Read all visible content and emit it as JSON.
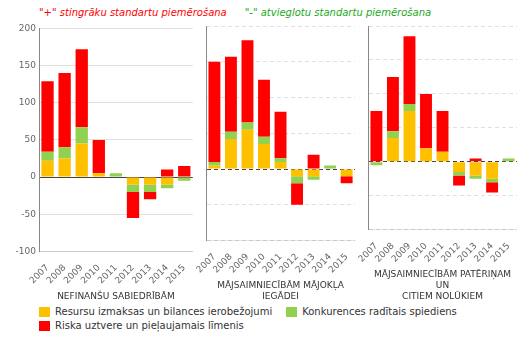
{
  "chart_data": [
    {
      "type": "bar",
      "stacked": true,
      "grid": true,
      "legend": "bottom",
      "xlabel": "NEFINANŠU SABIEDRĪBĀM",
      "categories": [
        2007,
        2008,
        2009,
        2010,
        2011,
        2012,
        2013,
        2014,
        2015
      ],
      "series": [
        {
          "name": "Resursu izmaksas un bilances ierobežojumi",
          "color": "#FFC000",
          "values": [
            22,
            25,
            45,
            5,
            0,
            -10,
            -10,
            -10,
            0
          ]
        },
        {
          "name": "Konkurences radītais spiediens",
          "color": "#92D050",
          "values": [
            12,
            15,
            22,
            0,
            5,
            -10,
            -10,
            -5,
            -5
          ]
        },
        {
          "name": "Riska uztvere un pieļaujamais līmenis",
          "color": "#FF0000",
          "values": [
            95,
            100,
            105,
            45,
            0,
            -35,
            -10,
            10,
            15
          ]
        }
      ],
      "ylim": [
        -100,
        200
      ],
      "yticks": [
        -100,
        -50,
        0,
        50,
        100,
        150,
        200
      ],
      "annotations": [
        {
          "text": "\"+\" stingrāku standartu piemērošana",
          "color": "red"
        },
        {
          "text": "\"-\" atvieglotu standartu piemērošana",
          "color": "#22AA22"
        }
      ]
    },
    {
      "type": "bar",
      "stacked": true,
      "grid": true,
      "tick_labels": "x",
      "xlabel": "MĀJSAIMNIECĪBĀM MĀJOKĻA IEGĀDEI",
      "categories": [
        2007,
        2008,
        2009,
        2010,
        2011,
        2012,
        2013,
        2014,
        2015
      ],
      "series": [
        {
          "name": "Resursu izmaksas un bilances ierobežojumi",
          "color": "#FFC000",
          "values": [
            5,
            42,
            55,
            35,
            10,
            -10,
            -10,
            0,
            -10
          ]
        },
        {
          "name": "Konkurences radītais spiediens",
          "color": "#92D050",
          "values": [
            5,
            10,
            10,
            10,
            5,
            -10,
            -5,
            5,
            0
          ]
        },
        {
          "name": "Riska uztvere un pieļaujamais līmenis",
          "color": "#FF0000",
          "values": [
            140,
            105,
            115,
            80,
            65,
            -30,
            20,
            0,
            -10
          ]
        }
      ],
      "ylim": [
        -100,
        200
      ],
      "yticks": [
        -100,
        -50,
        0,
        50,
        100,
        150,
        200
      ]
    },
    {
      "type": "bar",
      "stacked": true,
      "grid": true,
      "tick_labels": "x",
      "xlabel": "MĀJSAIMNIECĪBĀM PATĒRIŅAM UN\nCITIEM NOLŪKIEM",
      "categories": [
        2007,
        2008,
        2009,
        2010,
        2011,
        2012,
        2013,
        2014,
        2015
      ],
      "series": [
        {
          "name": "Resursu izmaksas un bilances ierobežojumi",
          "color": "#FFC000",
          "values": [
            0,
            35,
            75,
            20,
            15,
            -15,
            -20,
            -25,
            0
          ]
        },
        {
          "name": "Konkurences radītais spiediens",
          "color": "#92D050",
          "values": [
            -5,
            10,
            10,
            0,
            0,
            -5,
            -5,
            -5,
            5
          ]
        },
        {
          "name": "Riska uztvere un pieļaujamais līmenis",
          "color": "#FF0000",
          "values": [
            75,
            80,
            100,
            80,
            60,
            -15,
            5,
            -15,
            0
          ]
        }
      ],
      "ylim": [
        -100,
        200
      ],
      "yticks": [
        -100,
        -50,
        0,
        50,
        100,
        150,
        200
      ]
    }
  ]
}
